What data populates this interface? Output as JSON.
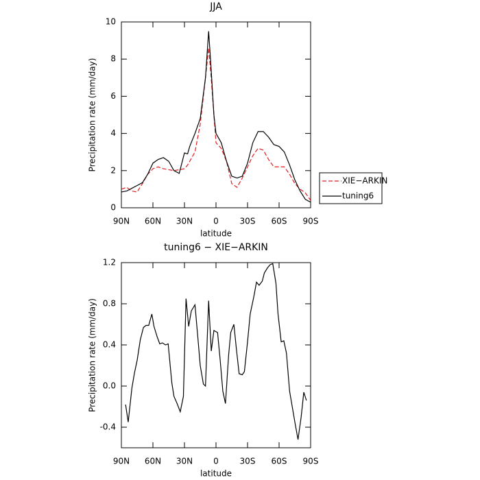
{
  "chart_data": [
    {
      "type": "line",
      "title": "JJA",
      "x_label": "latitude",
      "y_label": "Precipitation rate (mm/day)",
      "x": [
        90,
        85,
        80,
        75,
        70,
        65,
        60,
        55,
        50,
        45,
        40,
        35,
        30,
        27,
        25,
        20,
        15,
        10,
        7,
        5,
        2,
        0,
        -5,
        -10,
        -15,
        -20,
        -25,
        -30,
        -35,
        -40,
        -45,
        -50,
        -55,
        -60,
        -65,
        -70,
        -75,
        -80,
        -85,
        -90
      ],
      "series": [
        {
          "name": "XIE−ARKIN",
          "color": "#e41a1c",
          "dashed": true,
          "values": [
            1.0,
            1.1,
            0.9,
            0.85,
            1.3,
            1.8,
            2.1,
            2.2,
            2.1,
            2.05,
            2.0,
            2.05,
            2.1,
            2.3,
            2.5,
            3.0,
            4.5,
            7.0,
            8.6,
            7.3,
            5.0,
            3.5,
            3.2,
            2.5,
            1.3,
            1.1,
            1.6,
            2.2,
            2.8,
            3.2,
            3.1,
            2.6,
            2.2,
            2.2,
            2.2,
            1.8,
            1.3,
            1.0,
            0.8,
            0.4
          ]
        },
        {
          "name": "tuning6",
          "color": "#000000",
          "dashed": false,
          "values": [
            0.85,
            0.9,
            1.05,
            1.2,
            1.35,
            1.8,
            2.4,
            2.6,
            2.7,
            2.5,
            2.0,
            1.85,
            2.95,
            2.9,
            3.3,
            4.0,
            4.8,
            7.0,
            9.5,
            7.8,
            5.0,
            4.0,
            3.5,
            2.5,
            1.7,
            1.6,
            1.7,
            2.4,
            3.5,
            4.1,
            4.1,
            3.8,
            3.4,
            3.3,
            3.0,
            2.3,
            1.5,
            0.9,
            0.45,
            0.3
          ]
        }
      ],
      "xlim": [
        90,
        -90
      ],
      "xticks": [
        {
          "value": 90,
          "label": "90N"
        },
        {
          "value": 60,
          "label": "60N"
        },
        {
          "value": 30,
          "label": "30N"
        },
        0,
        {
          "value": -30,
          "label": "30S"
        },
        {
          "value": -60,
          "label": "60S"
        },
        {
          "value": -90,
          "label": "90S"
        }
      ],
      "ylim": [
        0,
        10
      ],
      "yticks": [
        0,
        2,
        4,
        6,
        8,
        10
      ],
      "legend": "right"
    },
    {
      "type": "line",
      "title": "tuning6 − XIE−ARKIN",
      "x_label": "latitude",
      "y_label": "Precipitation rate (mm/day)",
      "x": [
        86,
        83.5,
        80,
        77.5,
        75,
        72,
        69,
        66.5,
        64,
        61,
        59,
        56,
        53.5,
        51,
        48,
        45.5,
        42,
        40,
        37,
        34,
        31,
        28.5,
        26,
        23.5,
        20,
        17.5,
        15,
        12,
        10,
        7,
        4.5,
        2,
        -1.5,
        -4,
        -6.5,
        -9,
        -12,
        -14,
        -17,
        -19.5,
        -22,
        -25,
        -27,
        -30,
        -32.5,
        -36,
        -38.5,
        -41,
        -44,
        -46,
        -49,
        -51.5,
        -54,
        -57,
        -59,
        -62,
        -64.5,
        -67,
        -70,
        -72.5,
        -75,
        -78,
        -81,
        -83.5,
        -86
      ],
      "series": [
        {
          "name": "tuning6 − XIE−ARKIN",
          "color": "#000000",
          "dashed": false,
          "values": [
            -0.18,
            -0.35,
            -0.02,
            0.13,
            0.25,
            0.45,
            0.57,
            0.59,
            0.59,
            0.7,
            0.58,
            0.48,
            0.41,
            0.42,
            0.4,
            0.41,
            0.03,
            -0.1,
            -0.17,
            -0.25,
            -0.1,
            0.85,
            0.58,
            0.73,
            0.79,
            0.5,
            0.2,
            0.02,
            0.0,
            0.83,
            0.34,
            0.54,
            0.52,
            0.25,
            -0.05,
            -0.17,
            0.3,
            0.52,
            0.6,
            0.35,
            0.12,
            0.11,
            0.14,
            0.43,
            0.7,
            0.87,
            1.01,
            0.98,
            1.02,
            1.1,
            1.15,
            1.18,
            1.19,
            1.0,
            0.7,
            0.43,
            0.44,
            0.32,
            -0.05,
            -0.2,
            -0.35,
            -0.52,
            -0.3,
            -0.06,
            -0.14
          ]
        }
      ],
      "xlim": [
        90,
        -90
      ],
      "xticks": [
        {
          "value": 90,
          "label": "90N"
        },
        {
          "value": 60,
          "label": "60N"
        },
        {
          "value": 30,
          "label": "30N"
        },
        0,
        {
          "value": -30,
          "label": "30S"
        },
        {
          "value": -60,
          "label": "60S"
        },
        {
          "value": -90,
          "label": "90S"
        }
      ],
      "ylim": [
        -0.6,
        1.2
      ],
      "yticks": [
        -0.4,
        {
          "value": 0,
          "label": "0.0"
        },
        0.4,
        0.8,
        1.2
      ]
    }
  ]
}
